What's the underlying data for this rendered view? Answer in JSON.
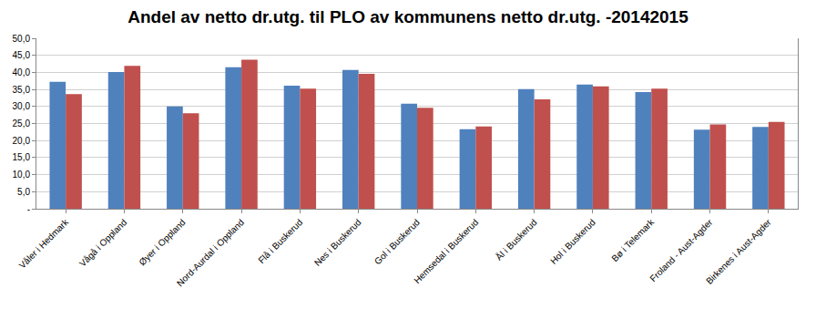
{
  "chart_data": {
    "type": "bar",
    "title": "Andel av netto dr.utg. til PLO av kommunens netto dr.utg. -20142015",
    "categories": [
      "Våler i Hedmark",
      "Vågå i Oppland",
      "Øyer i Oppland",
      "Nord-Aurdal i Oppland",
      "Flå i Buskerud",
      "Nes i Buskerud",
      "Gol i Buskerud",
      "Hemsedal i Buskerud",
      "Ål i Buskerud",
      "Hol i Buskerud",
      "Bø i Telemark",
      "Froland - Aust-Agder",
      "Birkenes i Aust-Agder"
    ],
    "series": [
      {
        "color": "#4F81BD",
        "values": [
          37.2,
          40.1,
          30.0,
          41.5,
          36.1,
          40.7,
          30.8,
          23.3,
          35.1,
          36.4,
          34.2,
          23.2,
          24.0
        ]
      },
      {
        "color": "#C0504D",
        "values": [
          33.6,
          41.9,
          28.0,
          43.7,
          35.2,
          39.6,
          29.6,
          24.1,
          32.1,
          35.9,
          35.2,
          24.7,
          25.5
        ]
      }
    ],
    "ylim": [
      0,
      50
    ],
    "yticks": [
      {
        "value": 0,
        "label": "-"
      },
      {
        "value": 5,
        "label": "5,0"
      },
      {
        "value": 10,
        "label": "10,0"
      },
      {
        "value": 15,
        "label": "15,0"
      },
      {
        "value": 20,
        "label": "20,0"
      },
      {
        "value": 25,
        "label": "25,0"
      },
      {
        "value": 30,
        "label": "30,0"
      },
      {
        "value": 35,
        "label": "35,0"
      },
      {
        "value": 40,
        "label": "40,0"
      },
      {
        "value": 45,
        "label": "45,0"
      },
      {
        "value": 50,
        "label": "50,0"
      }
    ],
    "grid": true
  }
}
